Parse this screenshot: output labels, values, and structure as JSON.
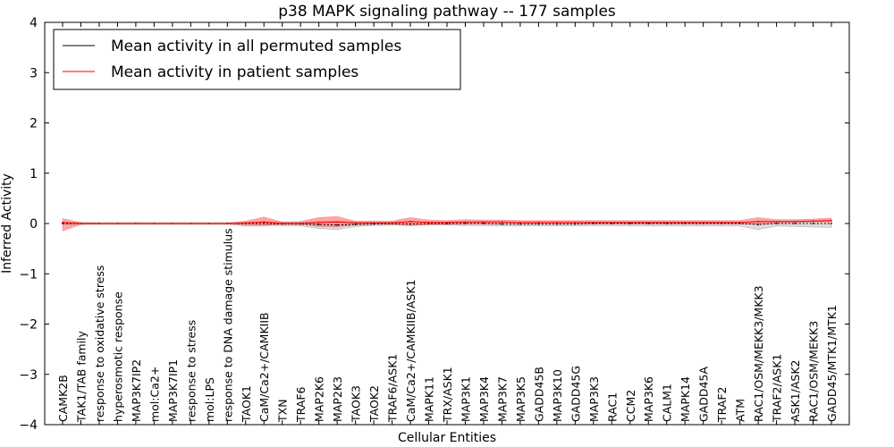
{
  "chart_data": {
    "type": "line",
    "title": "p38 MAPK signaling pathway -- 177 samples",
    "xlabel": "Cellular Entities",
    "ylabel": "Inferred Activity",
    "ylim": [
      -4,
      4
    ],
    "yticks": [
      -4,
      -3,
      -2,
      -1,
      0,
      1,
      2,
      3,
      4
    ],
    "legend_position": "top-left",
    "categories": [
      "CAMK2B",
      "TAK1/TAB family",
      "response to oxidative stress",
      "hyperosmotic response",
      "MAP3K7IP2",
      "mol:Ca2+",
      "MAP3K7IP1",
      "response to stress",
      "mol:LPS",
      "response to DNA damage stimulus",
      "TAOK1",
      "CaM/Ca2+/CAMKIIB",
      "TXN",
      "TRAF6",
      "MAP2K6",
      "MAP2K3",
      "TAOK3",
      "TAOK2",
      "TRAF6/ASK1",
      "CaM/Ca2+/CAMKIIB/ASK1",
      "MAPK11",
      "TRX/ASK1",
      "MAP3K1",
      "MAP3K4",
      "MAP3K7",
      "MAP3K5",
      "GADD45B",
      "MAP3K10",
      "GADD45G",
      "MAP3K3",
      "RAC1",
      "CCM2",
      "MAP3K6",
      "CALM1",
      "MAPK14",
      "GADD45A",
      "TRAF2",
      "ATM",
      "RAC1/OSM/MEKK3/MKK3",
      "TRAF2/ASK1",
      "ASK1/ASK2",
      "RAC1/OSM/MEKK3",
      "GADD45/MTK1/MTK1"
    ],
    "series": [
      {
        "name": "Mean activity in all permuted samples",
        "color": "#000000",
        "values": [
          0.0,
          0.0,
          0.0,
          0.0,
          0.0,
          0.0,
          0.0,
          0.0,
          0.0,
          0.0,
          0.0,
          0.0,
          -0.01,
          -0.01,
          -0.02,
          -0.03,
          -0.02,
          -0.01,
          0.0,
          -0.01,
          0.0,
          0.0,
          0.0,
          0.0,
          -0.01,
          -0.01,
          -0.01,
          -0.01,
          -0.01,
          0.0,
          0.0,
          0.0,
          0.0,
          0.0,
          0.0,
          0.0,
          0.0,
          0.0,
          -0.02,
          0.0,
          0.0,
          0.0,
          0.0
        ],
        "lower": [
          -0.02,
          -0.02,
          -0.02,
          -0.02,
          -0.02,
          -0.02,
          -0.02,
          -0.02,
          -0.02,
          -0.02,
          -0.02,
          -0.03,
          -0.04,
          -0.05,
          -0.1,
          -0.12,
          -0.06,
          -0.04,
          -0.03,
          -0.04,
          -0.03,
          -0.03,
          -0.04,
          -0.04,
          -0.05,
          -0.05,
          -0.05,
          -0.05,
          -0.05,
          -0.04,
          -0.04,
          -0.05,
          -0.05,
          -0.05,
          -0.05,
          -0.05,
          -0.05,
          -0.05,
          -0.12,
          -0.05,
          -0.06,
          -0.07,
          -0.08
        ],
        "upper": [
          0.02,
          0.02,
          0.02,
          0.02,
          0.02,
          0.02,
          0.02,
          0.02,
          0.02,
          0.02,
          0.02,
          0.03,
          0.03,
          0.03,
          0.04,
          0.05,
          0.03,
          0.03,
          0.03,
          0.03,
          0.03,
          0.03,
          0.03,
          0.03,
          0.03,
          0.03,
          0.03,
          0.03,
          0.03,
          0.03,
          0.03,
          0.03,
          0.03,
          0.03,
          0.03,
          0.03,
          0.03,
          0.03,
          0.03,
          0.03,
          0.04,
          0.04,
          0.04
        ]
      },
      {
        "name": "Mean activity in patient samples",
        "color": "#ff0000",
        "values": [
          0.02,
          0.0,
          0.0,
          0.0,
          0.0,
          0.0,
          0.0,
          0.0,
          0.0,
          0.0,
          0.01,
          0.03,
          0.0,
          0.0,
          0.02,
          0.03,
          0.01,
          0.01,
          0.01,
          0.04,
          0.02,
          0.02,
          0.03,
          0.03,
          0.03,
          0.02,
          0.02,
          0.02,
          0.02,
          0.02,
          0.02,
          0.02,
          0.02,
          0.02,
          0.02,
          0.02,
          0.02,
          0.02,
          0.04,
          0.04,
          0.04,
          0.05,
          0.06
        ],
        "lower": [
          -0.15,
          -0.02,
          -0.01,
          -0.01,
          -0.01,
          -0.01,
          -0.01,
          -0.01,
          -0.01,
          -0.01,
          -0.05,
          -0.05,
          -0.02,
          -0.02,
          -0.06,
          -0.07,
          -0.03,
          -0.02,
          -0.02,
          -0.04,
          -0.02,
          -0.02,
          -0.01,
          -0.01,
          -0.01,
          -0.01,
          -0.01,
          -0.01,
          -0.01,
          -0.01,
          -0.01,
          -0.01,
          -0.01,
          -0.01,
          -0.01,
          -0.01,
          -0.01,
          -0.01,
          -0.02,
          0.01,
          0.02,
          0.03,
          0.03
        ],
        "upper": [
          0.1,
          0.02,
          0.01,
          0.01,
          0.01,
          0.01,
          0.01,
          0.01,
          0.01,
          0.01,
          0.05,
          0.13,
          0.03,
          0.04,
          0.12,
          0.14,
          0.05,
          0.05,
          0.05,
          0.12,
          0.07,
          0.06,
          0.08,
          0.07,
          0.07,
          0.06,
          0.06,
          0.06,
          0.06,
          0.06,
          0.06,
          0.06,
          0.06,
          0.06,
          0.06,
          0.06,
          0.06,
          0.06,
          0.12,
          0.08,
          0.08,
          0.09,
          0.11
        ]
      }
    ]
  }
}
